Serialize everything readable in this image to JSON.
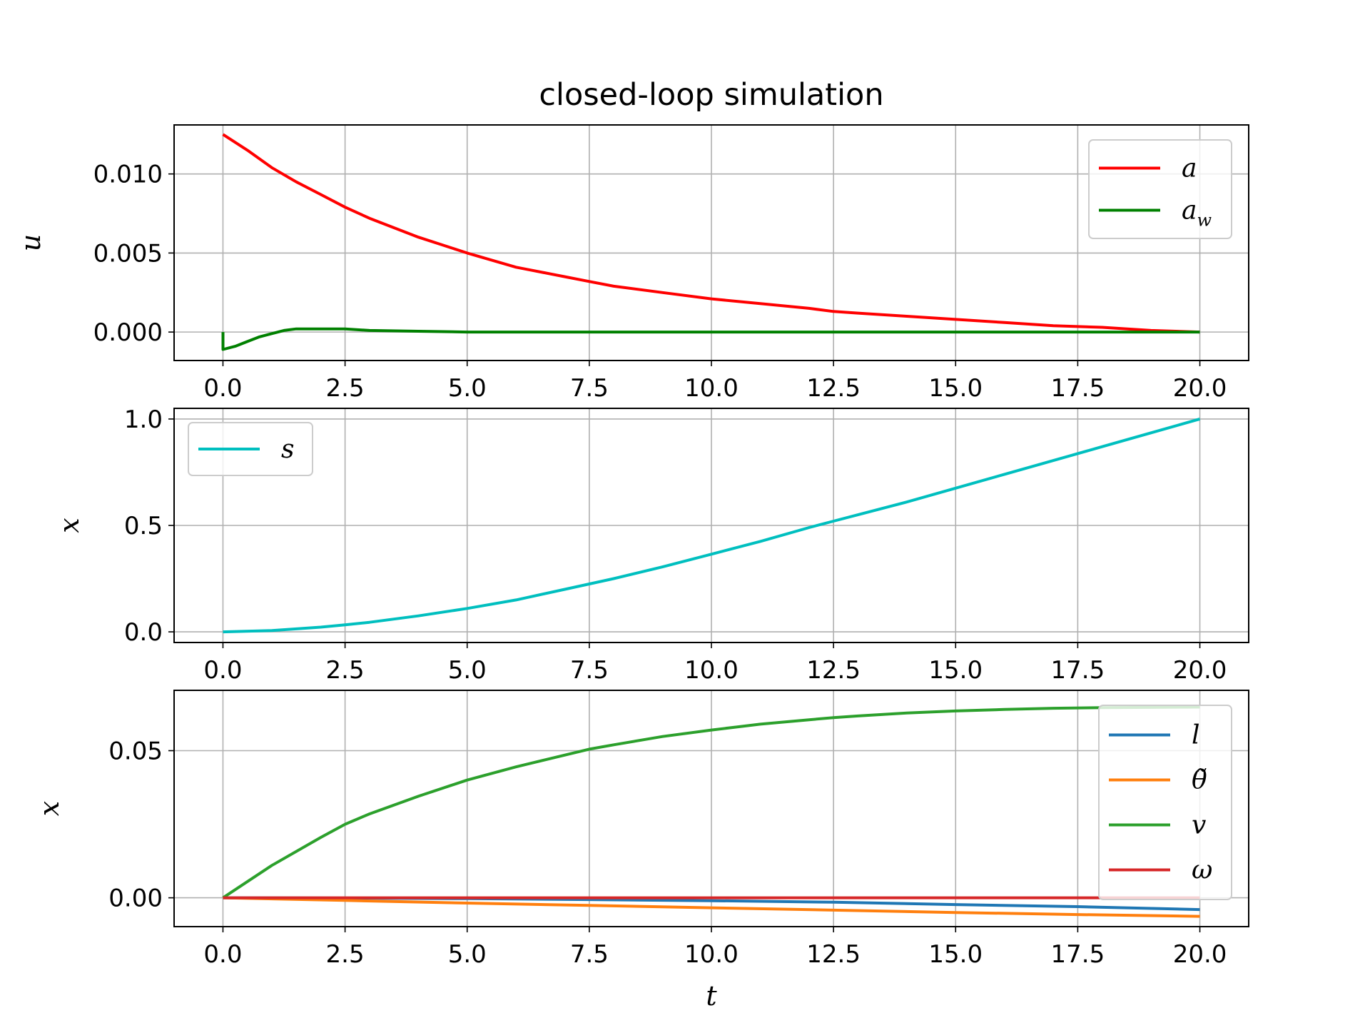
{
  "chart_data": [
    {
      "type": "line",
      "title": "closed-loop simulation",
      "xlabel": "",
      "ylabel": "u",
      "xlim": [
        -1.0,
        21.0
      ],
      "ylim": [
        -0.0018,
        0.0131
      ],
      "xticks": [
        "0.0",
        "2.5",
        "5.0",
        "7.5",
        "10.0",
        "12.5",
        "15.0",
        "17.5",
        "20.0"
      ],
      "yticks": [
        "0.000",
        "0.005",
        "0.010"
      ],
      "grid": true,
      "legend": "upper right",
      "series": [
        {
          "name": "a",
          "color": "#ff0000",
          "x": [
            0,
            0.5,
            1,
            1.5,
            2,
            2.5,
            3,
            4,
            5,
            6,
            7,
            7.5,
            8,
            9,
            10,
            11,
            12,
            12.5,
            13,
            14,
            15,
            16,
            17,
            18,
            19,
            20
          ],
          "y": [
            0.0125,
            0.0115,
            0.0104,
            0.0095,
            0.0087,
            0.0079,
            0.0072,
            0.006,
            0.005,
            0.0041,
            0.0035,
            0.0032,
            0.0029,
            0.0025,
            0.0021,
            0.0018,
            0.0015,
            0.0013,
            0.0012,
            0.001,
            0.0008,
            0.0006,
            0.0004,
            0.0003,
            0.0001,
            0.0
          ]
        },
        {
          "name": "a_w",
          "color": "#008000",
          "x": [
            0,
            0,
            0.25,
            0.5,
            0.75,
            1,
            1.25,
            1.5,
            2,
            2.5,
            3,
            4,
            5,
            7.5,
            10,
            12.5,
            15,
            17.5,
            20
          ],
          "y": [
            0.0,
            -0.0011,
            -0.0009,
            -0.0006,
            -0.0003,
            -0.0001,
            0.0001,
            0.0002,
            0.0002,
            0.0002,
            0.0001,
            5e-05,
            0.0,
            0.0,
            0.0,
            0.0,
            0.0,
            0.0,
            0.0
          ]
        }
      ]
    },
    {
      "type": "line",
      "xlabel": "",
      "ylabel": "x",
      "xlim": [
        -1.0,
        21.0
      ],
      "ylim": [
        -0.05,
        1.05
      ],
      "xticks": [
        "0.0",
        "2.5",
        "5.0",
        "7.5",
        "10.0",
        "12.5",
        "15.0",
        "17.5",
        "20.0"
      ],
      "yticks": [
        "0.0",
        "0.5",
        "1.0"
      ],
      "grid": true,
      "legend": "upper left",
      "series": [
        {
          "name": "s",
          "color": "#00bfbf",
          "x": [
            0,
            1,
            2,
            2.5,
            3,
            4,
            5,
            6,
            7,
            7.5,
            8,
            9,
            10,
            11,
            12,
            12.5,
            13,
            14,
            15,
            16,
            17,
            18,
            19,
            20
          ],
          "y": [
            0.0,
            0.006,
            0.022,
            0.033,
            0.045,
            0.075,
            0.11,
            0.15,
            0.2,
            0.225,
            0.25,
            0.305,
            0.365,
            0.425,
            0.49,
            0.52,
            0.55,
            0.61,
            0.675,
            0.74,
            0.805,
            0.87,
            0.935,
            1.0
          ]
        }
      ]
    },
    {
      "type": "line",
      "xlabel": "t",
      "ylabel": "x",
      "xlim": [
        -1.0,
        21.0
      ],
      "ylim": [
        -0.0098,
        0.0705
      ],
      "xticks": [
        "0.0",
        "2.5",
        "5.0",
        "7.5",
        "10.0",
        "12.5",
        "15.0",
        "17.5",
        "20.0"
      ],
      "yticks": [
        "0.00",
        "0.05"
      ],
      "grid": true,
      "legend": "upper right",
      "series": [
        {
          "name": "l",
          "color": "#1f77b4",
          "x": [
            0,
            2.5,
            5,
            7.5,
            10,
            12.5,
            15,
            17.5,
            20
          ],
          "y": [
            0.0,
            -0.0001,
            -0.0003,
            -0.0006,
            -0.001,
            -0.0015,
            -0.0023,
            -0.003,
            -0.004
          ]
        },
        {
          "name": "θ̃",
          "color": "#ff7f0e",
          "x": [
            0,
            2.5,
            5,
            7.5,
            10,
            12.5,
            15,
            17.5,
            20
          ],
          "y": [
            0.0,
            -0.0009,
            -0.0018,
            -0.0026,
            -0.0034,
            -0.0042,
            -0.005,
            -0.0057,
            -0.0063
          ]
        },
        {
          "name": "v",
          "color": "#2ca02c",
          "x": [
            0,
            1,
            2,
            2.5,
            3,
            4,
            5,
            6,
            7,
            7.5,
            8,
            9,
            10,
            11,
            12,
            12.5,
            13,
            14,
            15,
            16,
            17,
            18,
            19,
            20
          ],
          "y": [
            0.0,
            0.011,
            0.0205,
            0.025,
            0.0285,
            0.0345,
            0.04,
            0.0445,
            0.0485,
            0.0505,
            0.052,
            0.0548,
            0.057,
            0.059,
            0.0605,
            0.0612,
            0.0618,
            0.0628,
            0.0635,
            0.064,
            0.0644,
            0.0646,
            0.0647,
            0.0648
          ]
        },
        {
          "name": "ω",
          "color": "#d62728",
          "x": [
            0,
            5,
            10,
            15,
            20
          ],
          "y": [
            0.0,
            0.0,
            0.0,
            0.0,
            0.0
          ]
        }
      ]
    }
  ]
}
